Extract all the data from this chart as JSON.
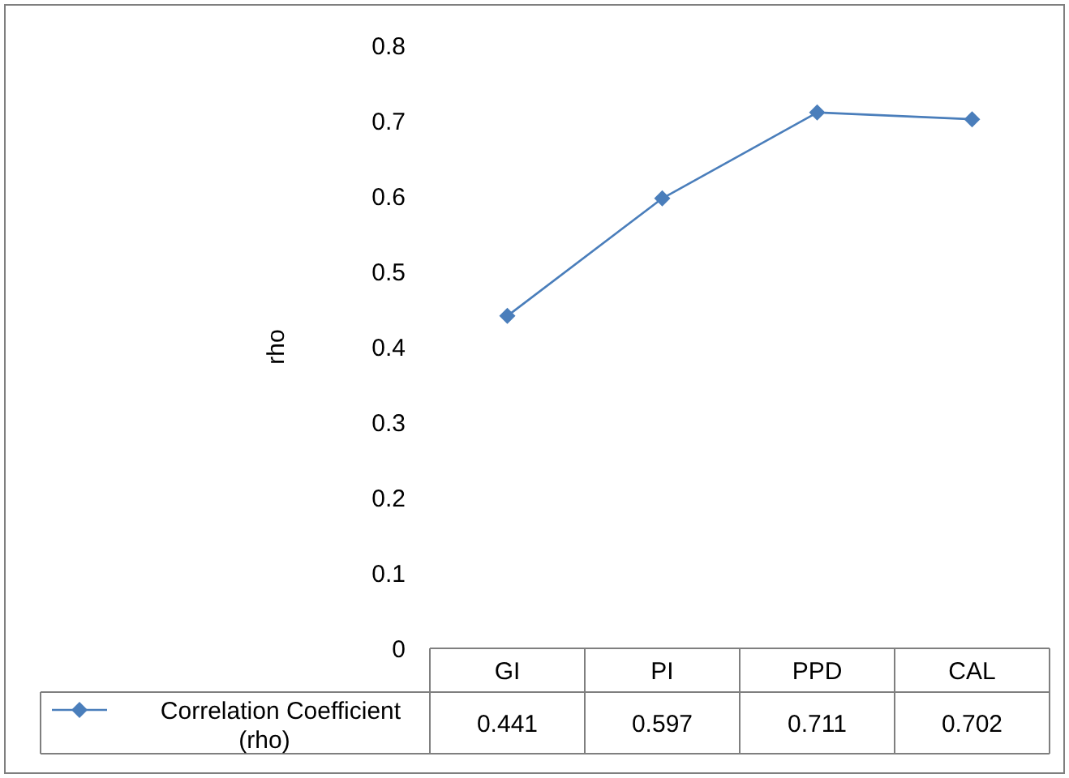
{
  "chart_data": {
    "type": "line",
    "ylabel": "rho",
    "categories": [
      "GI",
      "PI",
      "PPD",
      "CAL"
    ],
    "series": [
      {
        "name": "Correlation Coefficient (rho)",
        "color": "#4a7ebb",
        "values": [
          0.441,
          0.597,
          0.711,
          0.702
        ]
      }
    ],
    "ylim": [
      0,
      0.8
    ],
    "yticks": [
      0,
      0.1,
      0.2,
      0.3,
      0.4,
      0.5,
      0.6,
      0.7,
      0.8
    ],
    "data_labels": true,
    "legend": "bottom",
    "marker": "diamond",
    "line_style": "solid"
  }
}
